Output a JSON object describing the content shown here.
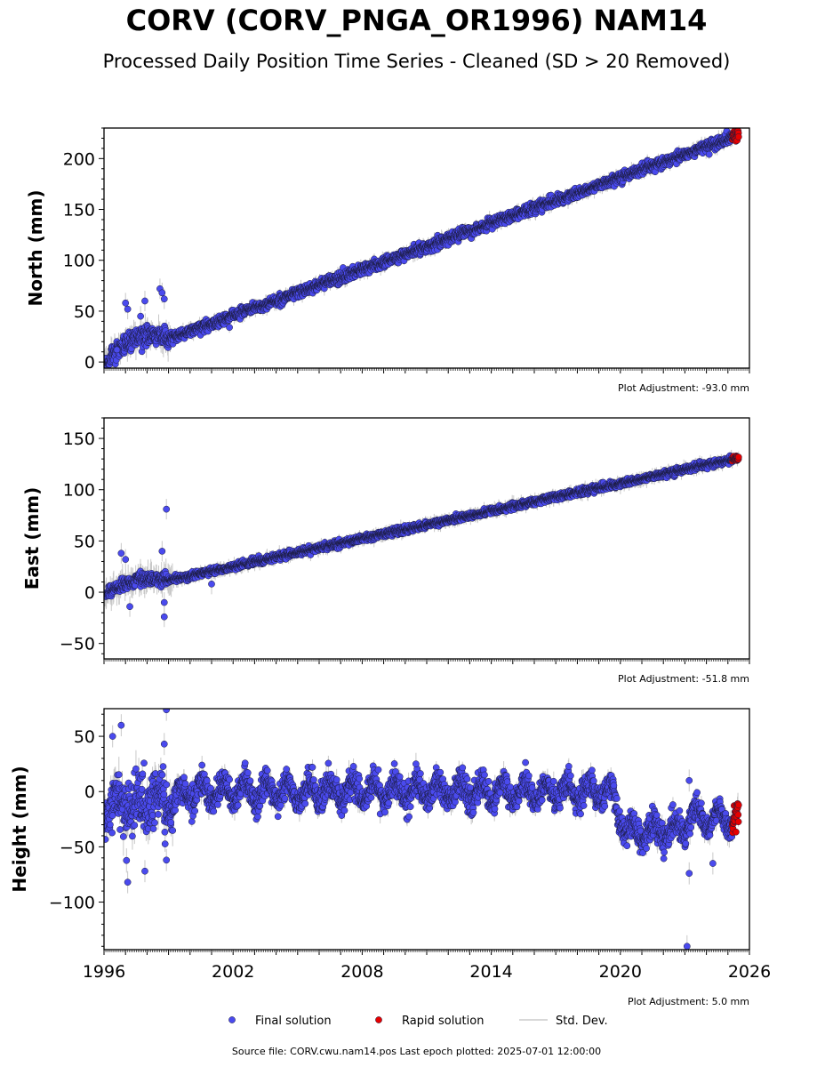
{
  "figure": {
    "title": "CORV (CORV_PNGA_OR1996) NAM14",
    "subtitle": "Processed Daily Position Time Series - Cleaned (SD > 20 Removed)",
    "footer": "Source file: CORV.cwu.nam14.pos  Last epoch plotted: 2025-07-01 12:00:00"
  },
  "legend": {
    "placement": "bottom-center",
    "items": [
      {
        "label": "Final solution",
        "color": "#4a4aee"
      },
      {
        "label": "Rapid solution",
        "color": "#e60000"
      },
      {
        "label": "Std. Dev.",
        "color": "#cccccc"
      }
    ]
  },
  "colors": {
    "final_fill": "#4a4aee",
    "rapid_fill": "#e60000",
    "marker_edge": "#1a1a3a",
    "stddev": "#c8c8c8",
    "axes": "#000000"
  },
  "chart_data": [
    {
      "type": "scatter",
      "ylabel": "North (mm)",
      "xlim": [
        1996,
        2026
      ],
      "ylim": [
        -6,
        230
      ],
      "yticks": [
        0,
        50,
        100,
        150,
        200
      ],
      "adjustment_label": "Plot Adjustment: -93.0 mm",
      "trend": {
        "start": [
          1996.0,
          0
        ],
        "end": [
          2025.5,
          223
        ]
      },
      "scatter_mm": 2.5,
      "early_anomaly": {
        "from": 1996.3,
        "to": 1998.9,
        "offset": 10,
        "spread": 14
      },
      "outliers": [
        [
          1997.0,
          58
        ],
        [
          1997.1,
          52
        ],
        [
          1997.9,
          60
        ],
        [
          1998.6,
          72
        ],
        [
          1998.7,
          68
        ],
        [
          1998.8,
          62
        ],
        [
          1997.7,
          45
        ],
        [
          1996.6,
          12
        ]
      ],
      "series": [
        {
          "name": "Final solution",
          "span": [
            1996.0,
            2025.2
          ],
          "step_years": 0.011
        },
        {
          "name": "Rapid solution",
          "span": [
            2025.2,
            2025.5
          ],
          "step_years": 0.011
        }
      ]
    },
    {
      "type": "scatter",
      "ylabel": "East (mm)",
      "xlim": [
        1996,
        2026
      ],
      "ylim": [
        -65,
        170
      ],
      "yticks": [
        -50,
        0,
        50,
        100,
        150
      ],
      "adjustment_label": "Plot Adjustment: -51.8 mm",
      "trend": {
        "start": [
          1996.0,
          -2
        ],
        "end": [
          2025.5,
          131
        ]
      },
      "scatter_mm": 1.6,
      "early_anomaly": {
        "from": 1996.2,
        "to": 1998.9,
        "offset": 5,
        "spread": 10
      },
      "outliers": [
        [
          1998.9,
          81
        ],
        [
          1998.8,
          -24
        ],
        [
          1996.8,
          38
        ],
        [
          1997.2,
          -14
        ],
        [
          1998.7,
          40
        ],
        [
          2001.0,
          8
        ],
        [
          1997.0,
          32
        ],
        [
          1998.8,
          -10
        ]
      ],
      "series": [
        {
          "name": "Final solution",
          "span": [
            1996.0,
            2025.2
          ],
          "step_years": 0.011
        },
        {
          "name": "Rapid solution",
          "span": [
            2025.2,
            2025.5
          ],
          "step_years": 0.011
        }
      ]
    },
    {
      "type": "scatter",
      "ylabel": "Height (mm)",
      "xlim": [
        1996,
        2026
      ],
      "ylim": [
        -143,
        75
      ],
      "yticks": [
        -100,
        -50,
        0,
        50
      ],
      "xticks": [
        1996,
        2002,
        2008,
        2014,
        2020,
        2026
      ],
      "adjustment_label": "Plot Adjustment: 5.0 mm",
      "levels": [
        [
          1996.0,
          -15
        ],
        [
          1999.0,
          -8
        ],
        [
          2000.0,
          0
        ],
        [
          2019.5,
          0
        ],
        [
          2020.3,
          -38
        ],
        [
          2022.8,
          -35
        ],
        [
          2023.2,
          -22
        ],
        [
          2025.5,
          -25
        ]
      ],
      "seasonal_amplitude": 9,
      "scatter_mm": 6,
      "outliers": [
        [
          1998.9,
          74
        ],
        [
          1996.8,
          60
        ],
        [
          1996.4,
          50
        ],
        [
          1998.8,
          43
        ],
        [
          1997.1,
          -82
        ],
        [
          1998.9,
          -62
        ],
        [
          1997.9,
          -72
        ],
        [
          2023.2,
          -74
        ],
        [
          2023.1,
          -140
        ],
        [
          2024.3,
          -65
        ],
        [
          2023.2,
          10
        ],
        [
          2010.5,
          25
        ]
      ],
      "series": [
        {
          "name": "Final solution",
          "span": [
            1996.0,
            2025.2
          ],
          "step_years": 0.011
        },
        {
          "name": "Rapid solution",
          "span": [
            2025.2,
            2025.5
          ],
          "step_years": 0.011
        }
      ]
    }
  ]
}
